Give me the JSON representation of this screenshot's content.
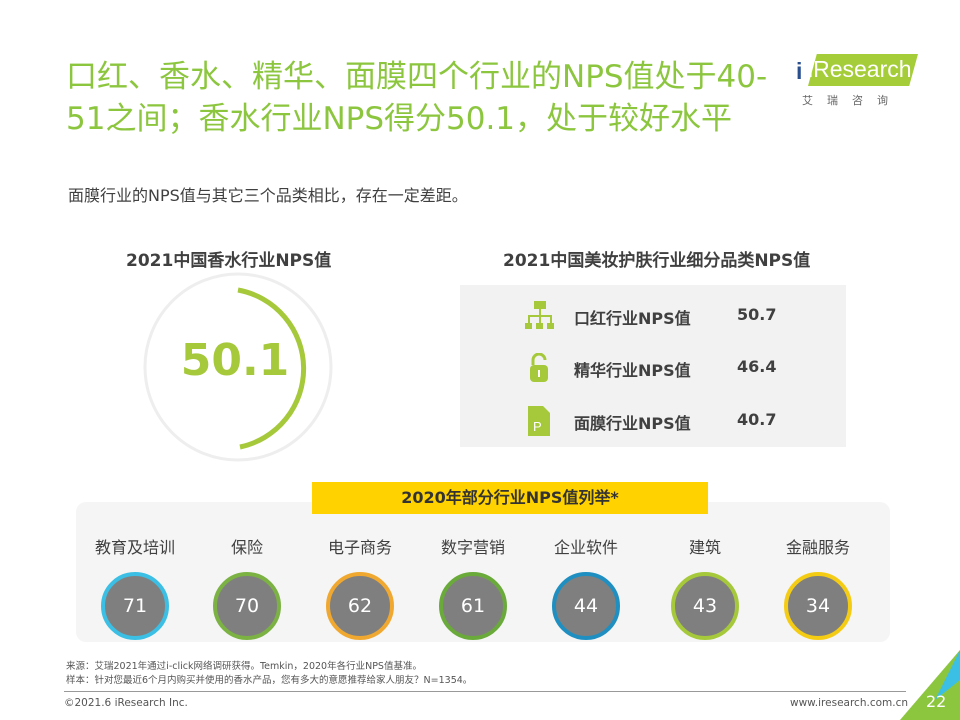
{
  "title": "口红、香水、精华、面膜四个行业的NPS值处于40-51之间；香水行业NPS得分50.1，处于较好水平",
  "logo": {
    "brand": "iResearch",
    "sub": "艾瑞咨询"
  },
  "subtitle": "面膜行业的NPS值与其它三个品类相比，存在一定差距。",
  "perfume": {
    "heading": "2021中国香水行业NPS值",
    "value": "50.1",
    "accent": "#a5c93a"
  },
  "beauty": {
    "heading": "2021中国美妆护肤行业细分品类NPS值",
    "items": [
      {
        "icon": "sitemap-icon",
        "label": "口红行业NPS值",
        "value": "50.7"
      },
      {
        "icon": "unlock-icon",
        "label": "精华行业NPS值",
        "value": "46.4"
      },
      {
        "icon": "document-p-icon",
        "label": "面膜行业NPS值",
        "value": "40.7"
      }
    ]
  },
  "industries": {
    "heading": "2020年部分行业NPS值列举*",
    "items": [
      {
        "name": "教育及培训",
        "value": "71",
        "color": "#3bbfe4"
      },
      {
        "name": "保险",
        "value": "70",
        "color": "#7bb243"
      },
      {
        "name": "电子商务",
        "value": "62",
        "color": "#f0a830"
      },
      {
        "name": "数字营销",
        "value": "61",
        "color": "#6aaa3a"
      },
      {
        "name": "企业软件",
        "value": "44",
        "color": "#1f8fc1"
      },
      {
        "name": "建筑",
        "value": "43",
        "color": "#a5c93a"
      },
      {
        "name": "金融服务",
        "value": "34",
        "color": "#f5cc14"
      }
    ]
  },
  "footer": {
    "source": "来源：艾瑞2021年通过i-click网络调研获得。Temkin，2020年各行业NPS值基准。",
    "sample": "样本：针对您最近6个月内购买并使用的香水产品，您有多大的意愿推荐给家人朋友？N=1354。",
    "copyright": "©2021.6 iResearch Inc.",
    "website": "www.iresearch.com.cn",
    "page": "22"
  }
}
